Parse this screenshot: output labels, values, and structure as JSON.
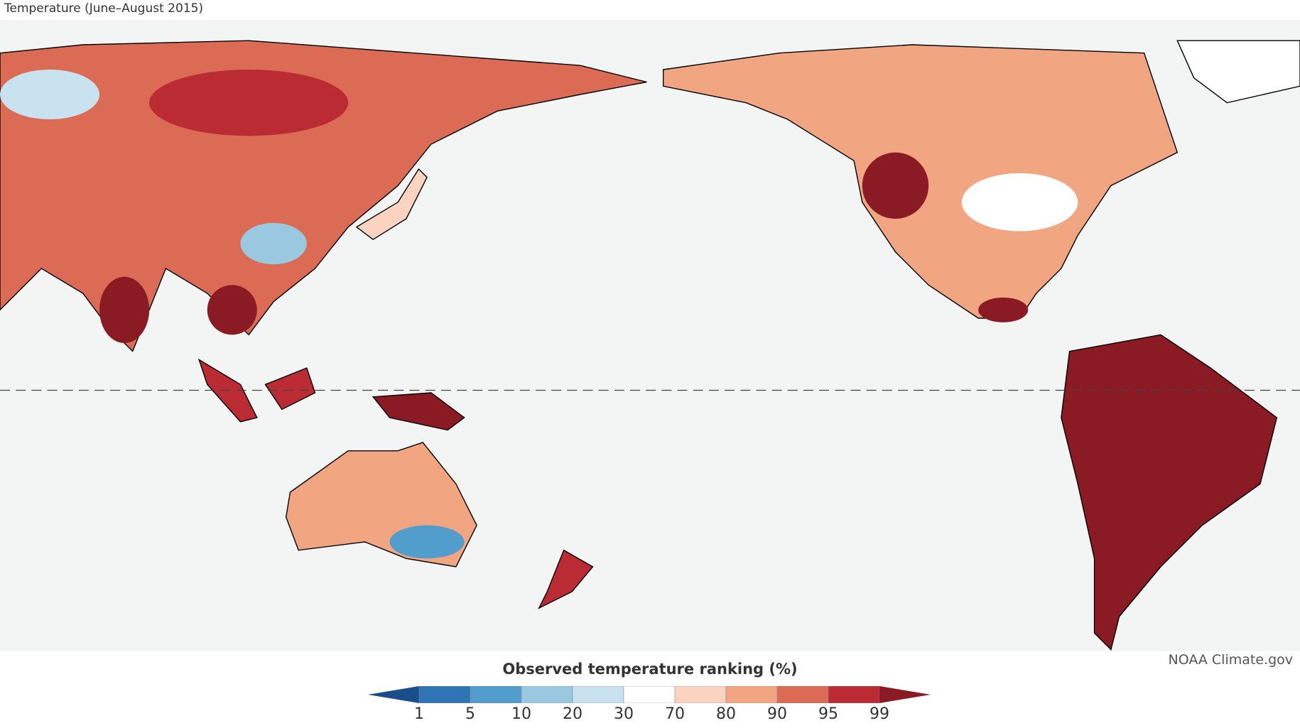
{
  "title": "Temperature (June–August 2015)",
  "credit": "NOAA Climate.gov",
  "legend": {
    "title": "Observed temperature ranking (%)",
    "ticks": [
      "1",
      "5",
      "10",
      "20",
      "30",
      "70",
      "80",
      "90",
      "95",
      "99"
    ],
    "colors": [
      "#1a4e8a",
      "#2f74b3",
      "#519dcb",
      "#9ac8e0",
      "#c9e2ef",
      "#ffffff",
      "#fbd3c0",
      "#f2a581",
      "#dc6b55",
      "#bb2b33",
      "#8a1a24"
    ]
  },
  "map": {
    "ocean": "#f3f4f4",
    "equator": "dashed"
  }
}
